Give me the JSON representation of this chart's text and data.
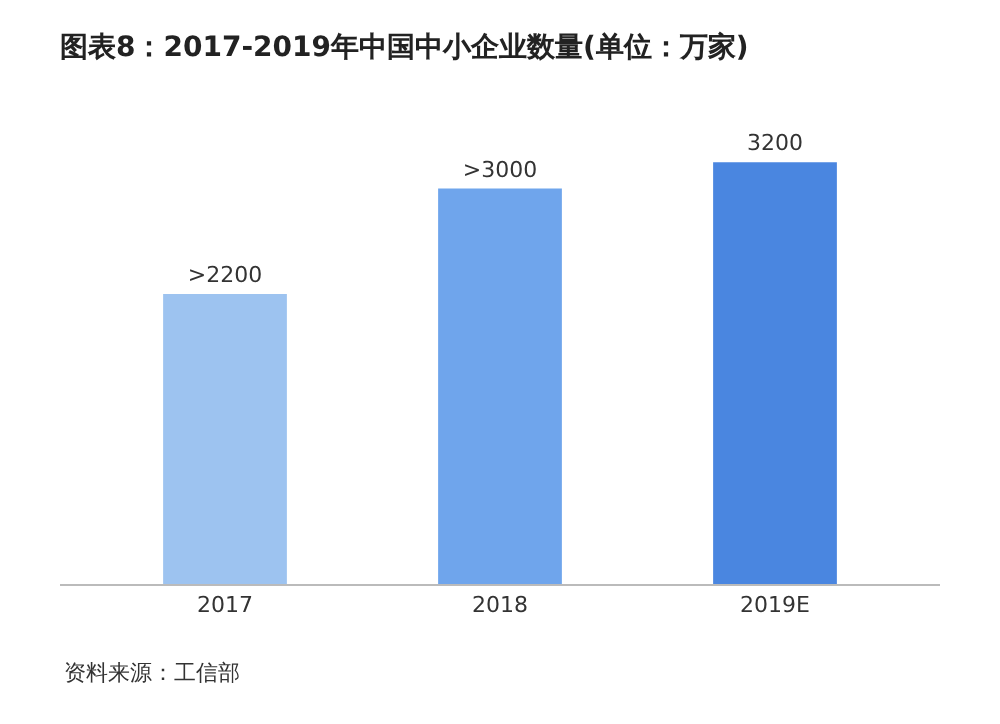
{
  "chart_data": {
    "type": "bar",
    "title": "图表8：2017-2019年中国中小企业数量(单位：万家)",
    "categories": [
      "2017",
      "2018",
      "2019E"
    ],
    "values": [
      2200,
      3000,
      3200
    ],
    "value_labels": [
      ">2200",
      ">3000",
      "3200"
    ],
    "colors": [
      "#9dc3f0",
      "#6fa5ec",
      "#4a86e0"
    ],
    "annotations": [
      "资料来源：工信部"
    ]
  }
}
